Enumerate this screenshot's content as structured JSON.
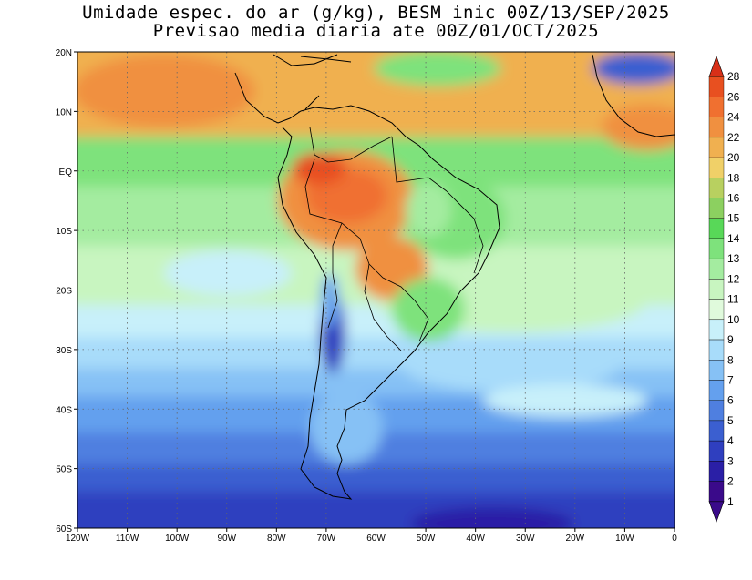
{
  "title": {
    "line1": "Umidade espec. do ar (g/kg), BESM inic 00Z/13/SEP/2025",
    "line2": "Previsao media diaria ate 00Z/01/OCT/2025"
  },
  "map": {
    "lon_range": [
      -120,
      0
    ],
    "lat_range": [
      -60,
      20
    ],
    "lon_ticks": [
      "120W",
      "110W",
      "100W",
      "90W",
      "80W",
      "70W",
      "60W",
      "50W",
      "40W",
      "30W",
      "20W",
      "10W",
      "0"
    ],
    "lat_ticks": [
      "20N",
      "10N",
      "EQ",
      "10S",
      "20S",
      "30S",
      "40S",
      "50S",
      "60S"
    ],
    "grid": "dotted"
  },
  "colorbar": {
    "labels": [
      "1",
      "2",
      "3",
      "4",
      "5",
      "6",
      "7",
      "8",
      "9",
      "10",
      "11",
      "12",
      "13",
      "14",
      "15",
      "16",
      "18",
      "20",
      "22",
      "24",
      "26",
      "28"
    ],
    "colors": [
      "#3a0a8a",
      "#2a1fa6",
      "#2f3fbf",
      "#3b5fd0",
      "#4f7fe0",
      "#64a0ee",
      "#86c1f5",
      "#a8dcfa",
      "#c8f0fa",
      "#e0fadc",
      "#c8f5c0",
      "#a4eca0",
      "#7ee27c",
      "#58d858",
      "#8cd060",
      "#b8d060",
      "#f0d068",
      "#f0b050",
      "#f09040",
      "#f07030",
      "#e85020",
      "#d83018"
    ]
  }
}
